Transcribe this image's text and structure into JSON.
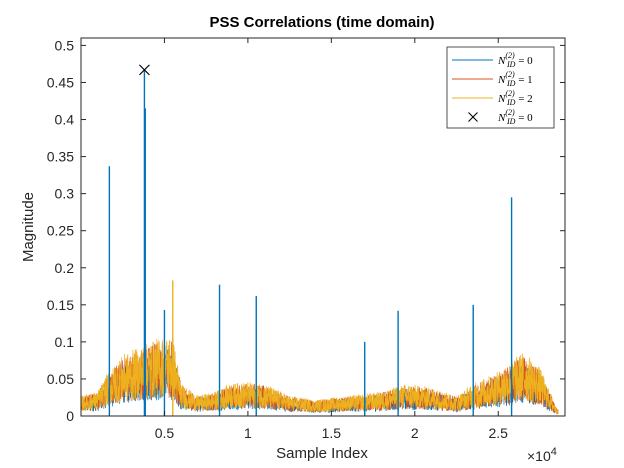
{
  "chart_data": {
    "type": "line",
    "title": "PSS Correlations (time domain)",
    "xlabel": "Sample Index",
    "ylabel": "Magnitude",
    "xlim": [
      0,
      29000
    ],
    "ylim": [
      0,
      0.51
    ],
    "x_ticks": [
      5000,
      10000,
      15000,
      20000,
      25000
    ],
    "x_tick_labels": [
      "0.5",
      "1",
      "1.5",
      "2",
      "2.5"
    ],
    "x_exponent_label": "×10",
    "x_exponent_power": "4",
    "y_ticks": [
      0,
      0.05,
      0.1,
      0.15,
      0.2,
      0.25,
      0.3,
      0.35,
      0.4,
      0.45,
      0.5
    ],
    "y_tick_labels": [
      "0",
      "0.05",
      "0.1",
      "0.15",
      "0.2",
      "0.25",
      "0.3",
      "0.35",
      "0.4",
      "0.45",
      "0.5"
    ],
    "grid": false,
    "legend_position": "top-right",
    "series": [
      {
        "id": 0,
        "legend_main": "N",
        "legend_sub": "ID",
        "legend_sup": "(2)",
        "legend_value": " = 0",
        "color": "#0072BD",
        "peaks": [
          [
            1700,
            0.337
          ],
          [
            3800,
            0.467
          ],
          [
            3850,
            0.415
          ],
          [
            5000,
            0.143
          ],
          [
            8300,
            0.177
          ],
          [
            10500,
            0.162
          ],
          [
            17000,
            0.1
          ],
          [
            19000,
            0.142
          ],
          [
            23500,
            0.15
          ],
          [
            25800,
            0.295
          ]
        ]
      },
      {
        "id": 1,
        "legend_main": "N",
        "legend_sub": "ID",
        "legend_sup": "(2)",
        "legend_value": " = 1",
        "color": "#D95319",
        "peaks": []
      },
      {
        "id": 2,
        "legend_main": "N",
        "legend_sub": "ID",
        "legend_sup": "(2)",
        "legend_value": " = 2",
        "color": "#EDB120",
        "peaks": [
          [
            5500,
            0.183
          ]
        ]
      }
    ],
    "envelope": {
      "description_points": [
        [
          0,
          0.025
        ],
        [
          1000,
          0.03
        ],
        [
          1500,
          0.05
        ],
        [
          2500,
          0.075
        ],
        [
          3500,
          0.085
        ],
        [
          4500,
          0.095
        ],
        [
          5500,
          0.1
        ],
        [
          6000,
          0.04
        ],
        [
          7000,
          0.025
        ],
        [
          8000,
          0.03
        ],
        [
          9000,
          0.04
        ],
        [
          10000,
          0.042
        ],
        [
          11000,
          0.04
        ],
        [
          12500,
          0.025
        ],
        [
          14000,
          0.02
        ],
        [
          16000,
          0.025
        ],
        [
          18000,
          0.03
        ],
        [
          19500,
          0.04
        ],
        [
          21000,
          0.035
        ],
        [
          22500,
          0.025
        ],
        [
          23500,
          0.04
        ],
        [
          25000,
          0.055
        ],
        [
          26500,
          0.08
        ],
        [
          27500,
          0.06
        ],
        [
          28500,
          0.01
        ],
        [
          29000,
          0.0
        ]
      ]
    },
    "marker": {
      "x": 3800,
      "y": 0.467,
      "symbol": "x",
      "legend_main": "N",
      "legend_sub": "ID",
      "legend_sup": "(2)",
      "legend_value": " = 0"
    }
  }
}
